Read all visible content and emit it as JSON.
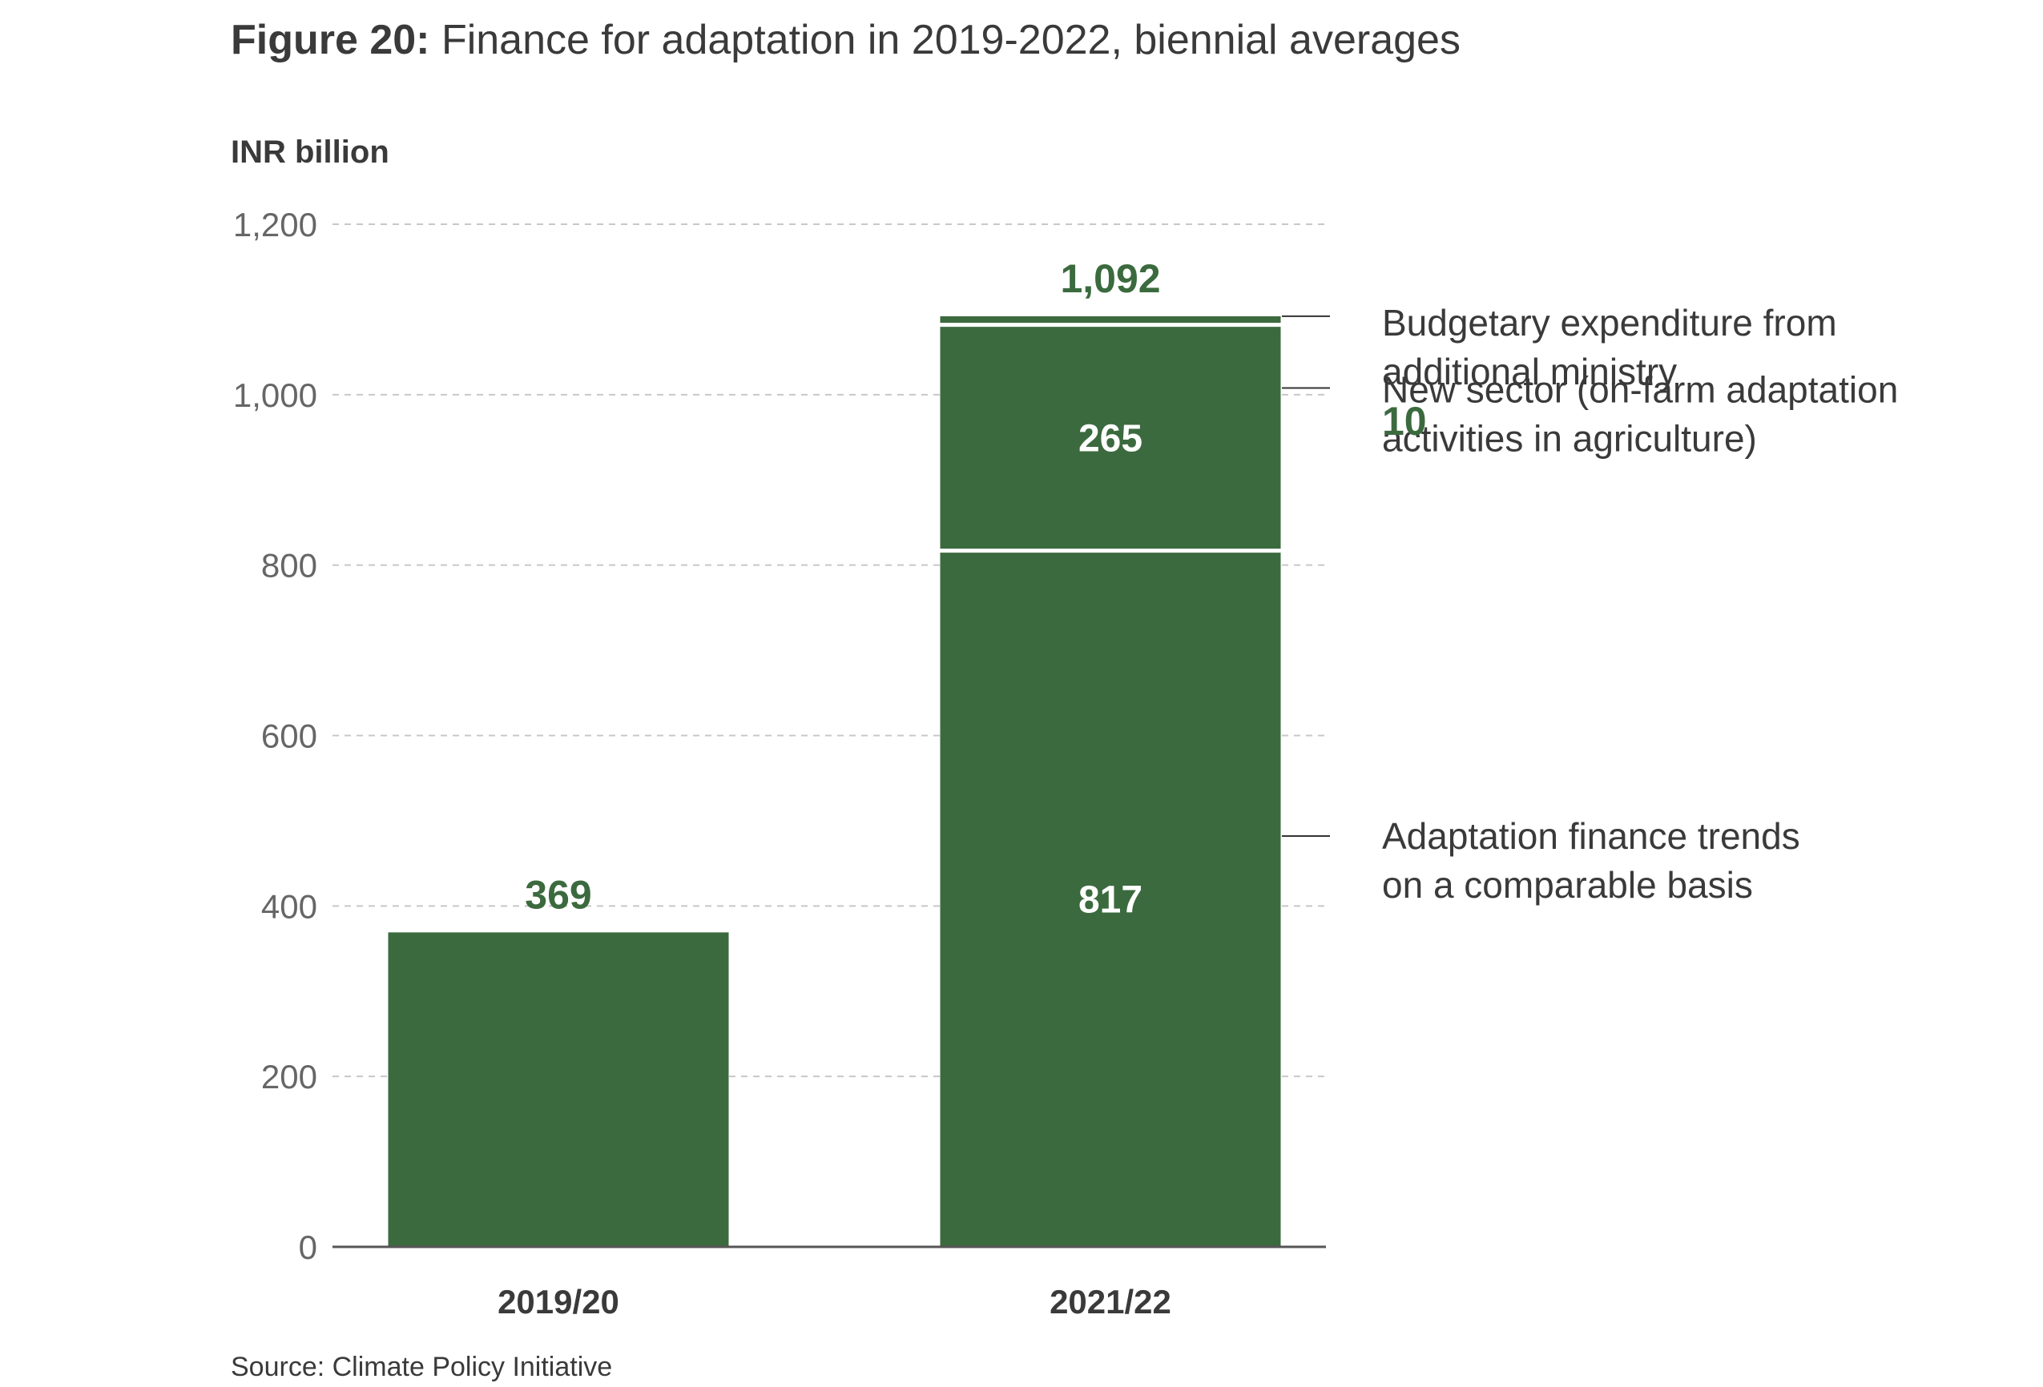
{
  "figure": {
    "title_lead": "Figure 20:",
    "title_rest": " Finance for adaptation in 2019-2022, biennial averages",
    "unit_label": "INR billion",
    "source": "Source: Climate Policy Initiative"
  },
  "chart_data": {
    "type": "bar",
    "stacked": true,
    "title": "Figure 20: Finance for adaptation in 2019-2022, biennial averages",
    "ylabel": "INR billion",
    "xlabel": "",
    "ylim": [
      0,
      1200
    ],
    "yticks": [
      0,
      200,
      400,
      600,
      800,
      1000,
      1200
    ],
    "ytick_labels": [
      "0",
      "200",
      "400",
      "600",
      "800",
      "1,000",
      "1,200"
    ],
    "grid": true,
    "categories": [
      "2019/20",
      "2021/22"
    ],
    "totals": [
      369,
      1092
    ],
    "total_labels": [
      "369",
      "1,092"
    ],
    "series": [
      {
        "name": "Adaptation finance trends on a comparable basis",
        "values": [
          369,
          817
        ],
        "value_labels": [
          "",
          "817"
        ],
        "annotation_lines": [
          "Adaptation finance trends",
          "on a comparable basis"
        ],
        "annotation_value": ""
      },
      {
        "name": "New sector (on-farm adaptation activities in agriculture)",
        "values": [
          0,
          265
        ],
        "value_labels": [
          "",
          "265"
        ],
        "annotation_lines": [
          "New sector (on-farm adaptation",
          "activities in agriculture)"
        ],
        "annotation_value": ""
      },
      {
        "name": "Budgetary expenditure from additional ministry",
        "values": [
          0,
          10
        ],
        "value_labels": [
          "",
          ""
        ],
        "annotation_lines": [
          "Budgetary expenditure from",
          "additional ministry"
        ],
        "annotation_value": "10"
      }
    ],
    "colors": {
      "bar": "#3b6a3e",
      "value_text_dark": "#3b6a3e",
      "value_text_light": "#ffffff",
      "axis_text": "#666666",
      "gridline": "#c8c8c8",
      "axis_line": "#555555"
    }
  }
}
